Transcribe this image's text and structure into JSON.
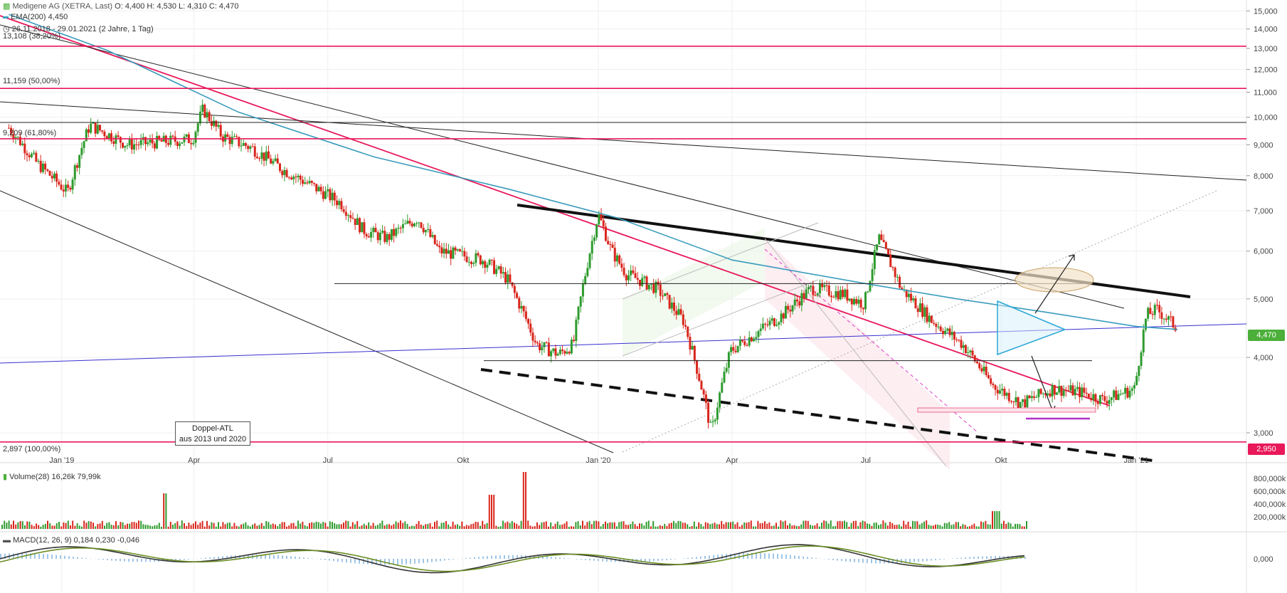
{
  "header": {
    "instrument_icon": "candles-icon",
    "title": "Medigene AG (XETRA, Last)",
    "ohlc": "O: 4,400  H: 4,530  L: 4,310  C: 4,470",
    "ema_label": "EMA(200)",
    "ema_value": "4,450",
    "range_icon": "clock-icon",
    "date_range": "26.11.2018 - 29.01.2021  (2 Jahre, 1 Tag)"
  },
  "fib_labels": [
    {
      "price": 13.108,
      "label": "13,108 (38,20%)"
    },
    {
      "price": 11.159,
      "label": "11,159 (50,00%)"
    },
    {
      "price": 9.209,
      "label": "9,209 (61,80%)"
    },
    {
      "price": 2.897,
      "label": "2,897 (100,00%)"
    }
  ],
  "annotation": {
    "line1": "Doppel-ATL",
    "line2": "aus 2013 und 2020"
  },
  "price_badges": [
    {
      "price": 4.47,
      "label": "4,470",
      "color": "#4caf3a"
    },
    {
      "price": 2.95,
      "label": "2,950",
      "color": "#e8185a"
    }
  ],
  "volume_panel": {
    "label": "Volume(28)",
    "v1": "16,26k",
    "v2": "79,99k",
    "ticks": [
      "800,000k",
      "600,000k",
      "400,000k",
      "200,000k"
    ]
  },
  "macd_panel": {
    "label": "MACD(12, 26, 9)",
    "v1": "0,184",
    "v2": "0,230",
    "v3": "-0,046",
    "tick": "0,000"
  },
  "chart_data": {
    "type": "candlestick",
    "title": "Medigene AG (XETRA, Last)",
    "scale": "log",
    "ylim": [
      2.75,
      15.3
    ],
    "price_ticks": [
      "15,000",
      "14,000",
      "13,000",
      "12,000",
      "11,000",
      "10,000",
      "9,000",
      "8,000",
      "7,000",
      "6,000",
      "5,000",
      "4,000",
      "3,000"
    ],
    "time_ticks": [
      "Jan '19",
      "Apr",
      "Jul",
      "Okt",
      "Jan '20",
      "Apr",
      "Jul",
      "Okt",
      "Jan '21"
    ],
    "series": [
      {
        "name": "Medigene AG (XETRA, Last)",
        "x": [
          "2018-11-26",
          "2018-12-15",
          "2019-01-05",
          "2019-01-20",
          "2019-02-15",
          "2019-03-10",
          "2019-03-31",
          "2019-04-07",
          "2019-04-20",
          "2019-05-10",
          "2019-05-31",
          "2019-06-20",
          "2019-07-10",
          "2019-07-25",
          "2019-08-10",
          "2019-08-31",
          "2019-09-15",
          "2019-09-30",
          "2019-10-15",
          "2019-10-31",
          "2019-11-20",
          "2019-12-05",
          "2019-12-15",
          "2020-01-01",
          "2020-01-10",
          "2020-01-20",
          "2020-02-10",
          "2020-02-28",
          "2020-03-18",
          "2020-03-31",
          "2020-04-15",
          "2020-05-05",
          "2020-05-25",
          "2020-06-15",
          "2020-06-30",
          "2020-07-10",
          "2020-07-25",
          "2020-08-15",
          "2020-09-05",
          "2020-09-25",
          "2020-10-15",
          "2020-11-05",
          "2020-11-25",
          "2020-12-10",
          "2020-12-31",
          "2021-01-08",
          "2021-01-15",
          "2021-01-29"
        ],
        "close": [
          9.6,
          8.4,
          7.5,
          9.7,
          9.0,
          9.1,
          9.2,
          10.3,
          9.3,
          8.9,
          8.2,
          7.7,
          7.2,
          6.5,
          6.3,
          6.8,
          6.0,
          5.9,
          5.8,
          5.4,
          4.2,
          4.05,
          4.2,
          6.9,
          6.0,
          5.5,
          5.2,
          4.6,
          3.0,
          4.1,
          4.35,
          4.7,
          5.2,
          5.1,
          4.9,
          6.3,
          5.2,
          4.6,
          4.2,
          3.6,
          3.35,
          3.55,
          3.5,
          3.4,
          3.55,
          4.7,
          4.8,
          4.47
        ]
      },
      {
        "name": "EMA(200)",
        "x": [
          "2018-11-26",
          "2019-02-01",
          "2019-05-01",
          "2019-08-01",
          "2019-11-01",
          "2020-01-15",
          "2020-04-01",
          "2020-07-01",
          "2020-09-01",
          "2020-11-01",
          "2021-01-01",
          "2021-01-29"
        ],
        "values": [
          14.8,
          12.9,
          10.2,
          8.6,
          7.6,
          6.8,
          5.8,
          5.3,
          5.0,
          4.75,
          4.5,
          4.45
        ]
      }
    ],
    "horizontal_levels": [
      13.108,
      11.159,
      9.209,
      2.897,
      9.8
    ],
    "volume_note": "spikes near Apr '19, Dec '19 and Jan '20",
    "macd": {
      "values_at_end": [
        0.184,
        0.23,
        -0.046
      ]
    }
  }
}
